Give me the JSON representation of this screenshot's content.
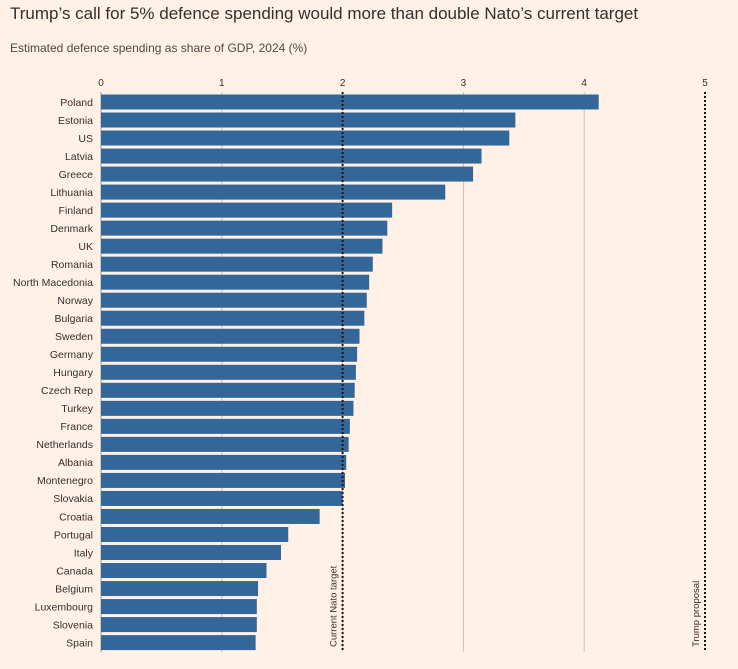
{
  "chart_data": {
    "type": "bar",
    "orientation": "horizontal",
    "title": "Trump’s call for 5% defence spending would more than double Nato’s current target",
    "subtitle": "Estimated defence spending as share of GDP, 2024 (%)",
    "xlim": [
      0,
      5
    ],
    "xticks": [
      "0",
      "1",
      "2",
      "3",
      "4",
      "5"
    ],
    "grid": true,
    "color": "#336699",
    "categories": [
      "Poland",
      "Estonia",
      "US",
      "Latvia",
      "Greece",
      "Lithuania",
      "Finland",
      "Denmark",
      "UK",
      "Romania",
      "North Macedonia",
      "Norway",
      "Bulgaria",
      "Sweden",
      "Germany",
      "Hungary",
      "Czech Rep",
      "Turkey",
      "France",
      "Netherlands",
      "Albania",
      "Montenegro",
      "Slovakia",
      "Croatia",
      "Portugal",
      "Italy",
      "Canada",
      "Belgium",
      "Luxembourg",
      "Slovenia",
      "Spain"
    ],
    "values": [
      4.12,
      3.43,
      3.38,
      3.15,
      3.08,
      2.85,
      2.41,
      2.37,
      2.33,
      2.25,
      2.22,
      2.2,
      2.18,
      2.14,
      2.12,
      2.11,
      2.1,
      2.09,
      2.06,
      2.05,
      2.03,
      2.02,
      2.0,
      1.81,
      1.55,
      1.49,
      1.37,
      1.3,
      1.29,
      1.29,
      1.28
    ],
    "reference_lines": [
      {
        "value": 2,
        "label": "Current Nato target"
      },
      {
        "value": 5,
        "label": "Trump proposal"
      }
    ]
  }
}
